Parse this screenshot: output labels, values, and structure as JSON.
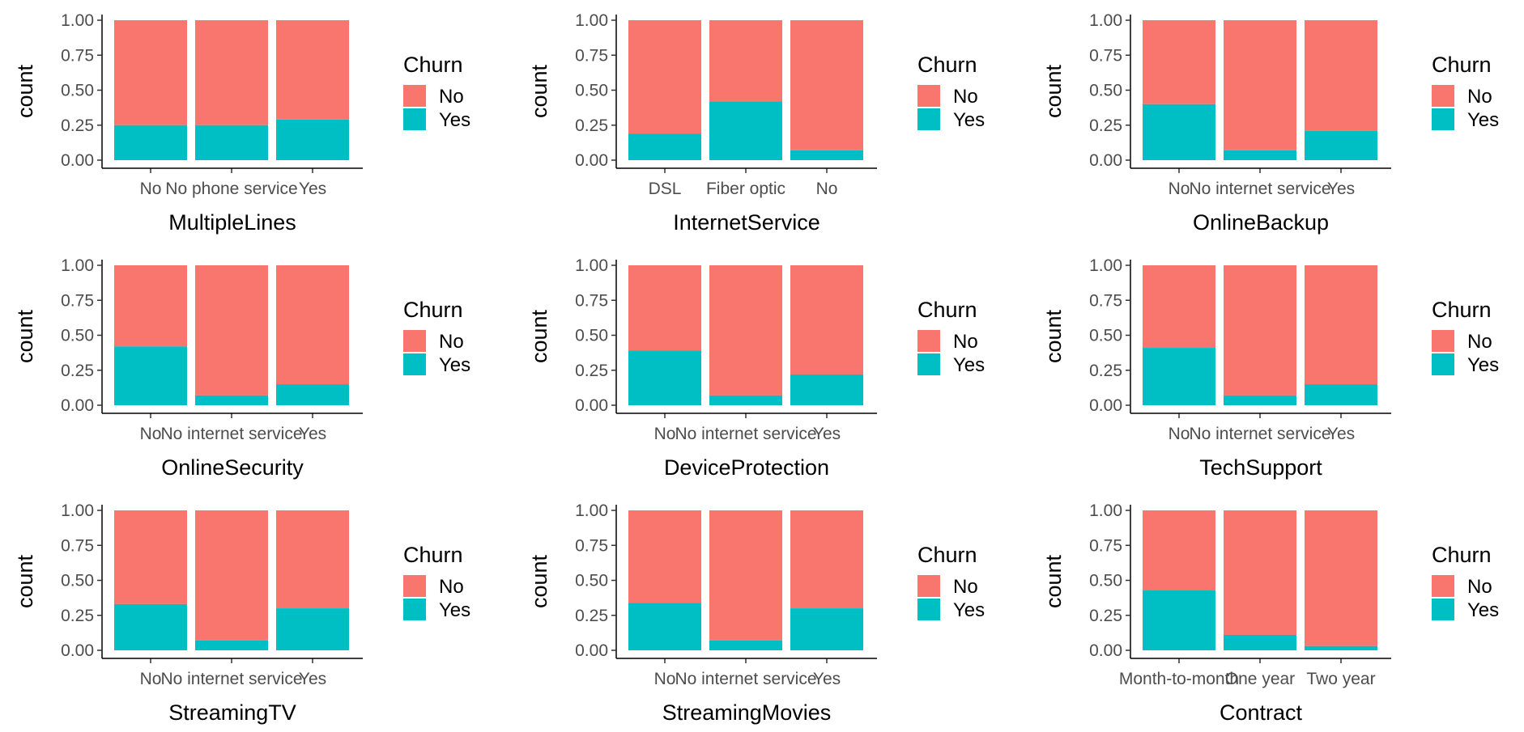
{
  "colors": {
    "No": "#F8766D",
    "Yes": "#00BFC4"
  },
  "legend": {
    "title": "Churn",
    "items": [
      "No",
      "Yes"
    ]
  },
  "y_ticks": [
    "0.00",
    "0.25",
    "0.50",
    "0.75",
    "1.00"
  ],
  "chart_data": [
    {
      "type": "bar",
      "stacked": "fill",
      "xlabel": "MultipleLines",
      "ylabel": "count",
      "ylim": [
        0,
        1
      ],
      "categories": [
        "No",
        "No phone service",
        "Yes"
      ],
      "series": [
        {
          "name": "No",
          "values": [
            0.75,
            0.75,
            0.71
          ]
        },
        {
          "name": "Yes",
          "values": [
            0.25,
            0.25,
            0.29
          ]
        }
      ]
    },
    {
      "type": "bar",
      "stacked": "fill",
      "xlabel": "InternetService",
      "ylabel": "count",
      "ylim": [
        0,
        1
      ],
      "categories": [
        "DSL",
        "Fiber optic",
        "No"
      ],
      "series": [
        {
          "name": "No",
          "values": [
            0.81,
            0.58,
            0.93
          ]
        },
        {
          "name": "Yes",
          "values": [
            0.19,
            0.42,
            0.07
          ]
        }
      ]
    },
    {
      "type": "bar",
      "stacked": "fill",
      "xlabel": "OnlineBackup",
      "ylabel": "count",
      "ylim": [
        0,
        1
      ],
      "categories": [
        "No",
        "No internet service",
        "Yes"
      ],
      "series": [
        {
          "name": "No",
          "values": [
            0.6,
            0.93,
            0.79
          ]
        },
        {
          "name": "Yes",
          "values": [
            0.4,
            0.07,
            0.21
          ]
        }
      ]
    },
    {
      "type": "bar",
      "stacked": "fill",
      "xlabel": "OnlineSecurity",
      "ylabel": "count",
      "ylim": [
        0,
        1
      ],
      "categories": [
        "No",
        "No internet service",
        "Yes"
      ],
      "series": [
        {
          "name": "No",
          "values": [
            0.58,
            0.93,
            0.85
          ]
        },
        {
          "name": "Yes",
          "values": [
            0.42,
            0.07,
            0.15
          ]
        }
      ]
    },
    {
      "type": "bar",
      "stacked": "fill",
      "xlabel": "DeviceProtection",
      "ylabel": "count",
      "ylim": [
        0,
        1
      ],
      "categories": [
        "No",
        "No internet service",
        "Yes"
      ],
      "series": [
        {
          "name": "No",
          "values": [
            0.61,
            0.93,
            0.78
          ]
        },
        {
          "name": "Yes",
          "values": [
            0.39,
            0.07,
            0.22
          ]
        }
      ]
    },
    {
      "type": "bar",
      "stacked": "fill",
      "xlabel": "TechSupport",
      "ylabel": "count",
      "ylim": [
        0,
        1
      ],
      "categories": [
        "No",
        "No internet service",
        "Yes"
      ],
      "series": [
        {
          "name": "No",
          "values": [
            0.59,
            0.93,
            0.85
          ]
        },
        {
          "name": "Yes",
          "values": [
            0.41,
            0.07,
            0.15
          ]
        }
      ]
    },
    {
      "type": "bar",
      "stacked": "fill",
      "xlabel": "StreamingTV",
      "ylabel": "count",
      "ylim": [
        0,
        1
      ],
      "categories": [
        "No",
        "No internet service",
        "Yes"
      ],
      "series": [
        {
          "name": "No",
          "values": [
            0.67,
            0.93,
            0.7
          ]
        },
        {
          "name": "Yes",
          "values": [
            0.33,
            0.07,
            0.3
          ]
        }
      ]
    },
    {
      "type": "bar",
      "stacked": "fill",
      "xlabel": "StreamingMovies",
      "ylabel": "count",
      "ylim": [
        0,
        1
      ],
      "categories": [
        "No",
        "No internet service",
        "Yes"
      ],
      "series": [
        {
          "name": "No",
          "values": [
            0.66,
            0.93,
            0.7
          ]
        },
        {
          "name": "Yes",
          "values": [
            0.34,
            0.07,
            0.3
          ]
        }
      ]
    },
    {
      "type": "bar",
      "stacked": "fill",
      "xlabel": "Contract",
      "ylabel": "count",
      "ylim": [
        0,
        1
      ],
      "categories": [
        "Month-to-month",
        "One year",
        "Two year"
      ],
      "series": [
        {
          "name": "No",
          "values": [
            0.57,
            0.89,
            0.97
          ]
        },
        {
          "name": "Yes",
          "values": [
            0.43,
            0.11,
            0.03
          ]
        }
      ]
    }
  ]
}
